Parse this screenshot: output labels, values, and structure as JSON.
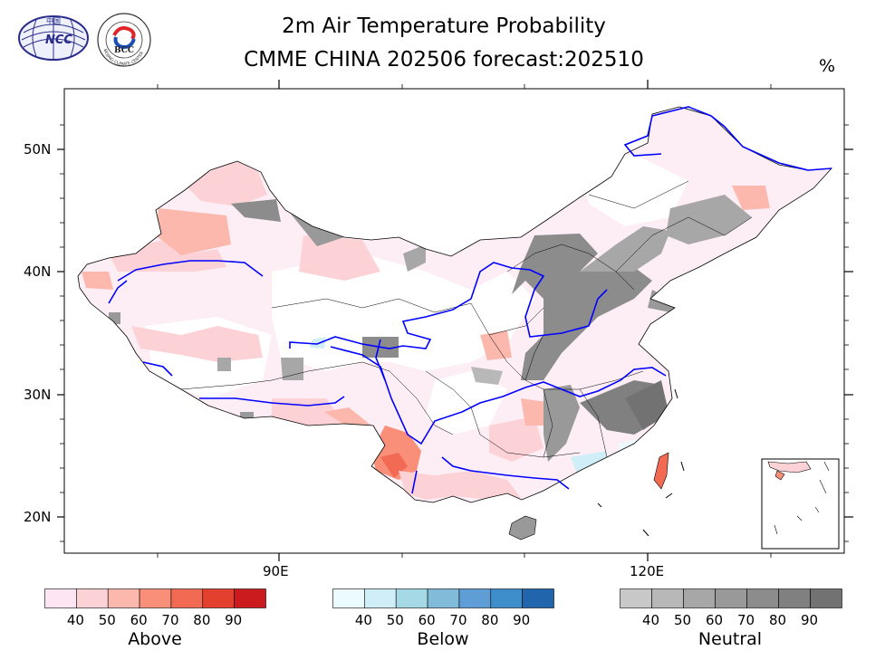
{
  "title_line1": "2m Air Temperature Probability",
  "title_line2": "CMME CHINA 202506 forecast:202510",
  "unit": "%",
  "logos": {
    "left": {
      "name": "NCC",
      "text": "NCC",
      "top_text": "中国"
    },
    "right": {
      "name": "BCC",
      "text": "BCC",
      "ring_text": "BEIJING CLIMATE CENTER"
    }
  },
  "axes": {
    "lon_labels": [
      "90E",
      "120E"
    ],
    "lat_labels": [
      "50N",
      "40N",
      "30N",
      "20N"
    ]
  },
  "colorbars": [
    {
      "name": "Above",
      "title": "Above",
      "labels": [
        "40",
        "50",
        "60",
        "70",
        "80",
        "90"
      ],
      "colors": [
        "#fde5f3",
        "#fdd2d6",
        "#fdb8ad",
        "#f98f78",
        "#f26a54",
        "#e3402f",
        "#cc1b1f"
      ]
    },
    {
      "name": "Below",
      "title": "Below",
      "labels": [
        "40",
        "50",
        "60",
        "70",
        "80",
        "90"
      ],
      "colors": [
        "#ecfbff",
        "#cfeef7",
        "#a6d9e6",
        "#80bcd9",
        "#5e9dd5",
        "#3f8ecc",
        "#2166ac"
      ]
    },
    {
      "name": "Neutral",
      "title": "Neutral",
      "labels": [
        "40",
        "50",
        "60",
        "70",
        "80",
        "90"
      ],
      "colors": [
        "#c8c8c8",
        "#b8b8b8",
        "#a7a7a7",
        "#999999",
        "#8c8c8c",
        "#808080",
        "#727272"
      ]
    }
  ],
  "colors": {
    "river": "#0000ff",
    "border": "#000000"
  }
}
